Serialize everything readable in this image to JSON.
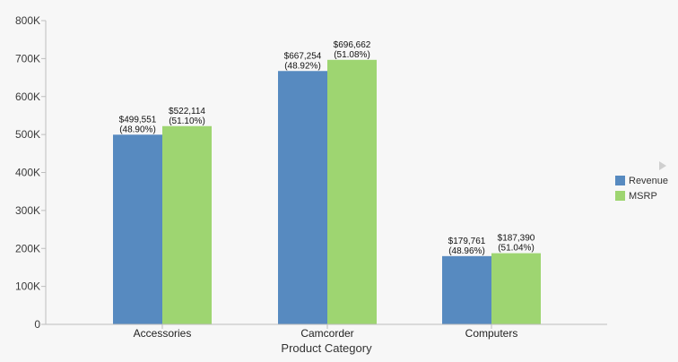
{
  "chart_data": {
    "type": "bar",
    "xlabel": "Product Category",
    "ylabel": "",
    "ylim": [
      0,
      800000
    ],
    "yticks": [
      {
        "value": 0,
        "label": "0"
      },
      {
        "value": 100000,
        "label": "100K"
      },
      {
        "value": 200000,
        "label": "200K"
      },
      {
        "value": 300000,
        "label": "300K"
      },
      {
        "value": 400000,
        "label": "400K"
      },
      {
        "value": 500000,
        "label": "500K"
      },
      {
        "value": 600000,
        "label": "600K"
      },
      {
        "value": 700000,
        "label": "700K"
      },
      {
        "value": 800000,
        "label": "800K"
      }
    ],
    "categories": [
      "Accessories",
      "Camcorder",
      "Computers"
    ],
    "series": [
      {
        "name": "Revenue",
        "color": "#578ac0",
        "values": [
          499551,
          667254,
          179761
        ],
        "value_labels": [
          "$499,551",
          "$667,254",
          "$179,761"
        ],
        "pct_labels": [
          "(48.90%)",
          "(48.92%)",
          "(48.96%)"
        ]
      },
      {
        "name": "MSRP",
        "color": "#9ed571",
        "values": [
          522114,
          696662,
          187390
        ],
        "value_labels": [
          "$522,114",
          "$696,662",
          "$187,390"
        ],
        "pct_labels": [
          "(51.10%)",
          "(51.08%)",
          "(51.04%)"
        ]
      }
    ],
    "legend": "right",
    "grid": false
  },
  "icons": {
    "legend_scroll": "play-triangle-icon"
  }
}
